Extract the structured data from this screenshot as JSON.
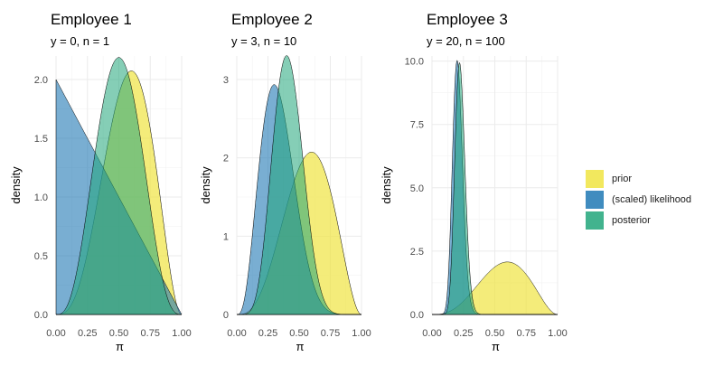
{
  "colors": {
    "prior": "#f0e442",
    "likelihood": "#1f78b4",
    "posterior": "#21a67a",
    "grid": "#ebebeb",
    "outline": "#000000"
  },
  "legend": {
    "items": [
      {
        "key": "prior",
        "label": "prior"
      },
      {
        "key": "likelihood",
        "label": "(scaled) likelihood"
      },
      {
        "key": "posterior",
        "label": "posterior"
      }
    ]
  },
  "chart_data": [
    {
      "type": "area",
      "title": "Employee 1",
      "subtitle": "y = 0, n = 1",
      "xlabel": "π",
      "ylabel": "density",
      "xlim": [
        0,
        1
      ],
      "ylim": [
        0,
        2.2
      ],
      "xticks": [
        0,
        0.25,
        0.5,
        0.75,
        1
      ],
      "xtick_labels": [
        "0.00",
        "0.25",
        "0.50",
        "0.75",
        "1.00"
      ],
      "yticks": [
        0,
        0.5,
        1,
        1.5,
        2
      ],
      "ytick_labels": [
        "0.0",
        "0.5",
        "1.0",
        "1.5",
        "2.0"
      ],
      "series": [
        {
          "name": "prior",
          "distribution": "beta",
          "alpha": 4,
          "beta": 3
        },
        {
          "name": "(scaled) likelihood",
          "distribution": "beta",
          "alpha": 1,
          "beta": 2
        },
        {
          "name": "posterior",
          "distribution": "beta",
          "alpha": 4,
          "beta": 4
        }
      ]
    },
    {
      "type": "area",
      "title": "Employee 2",
      "subtitle": "y = 3, n = 10",
      "xlabel": "π",
      "ylabel": "density",
      "xlim": [
        0,
        1
      ],
      "ylim": [
        0,
        3.3
      ],
      "xticks": [
        0,
        0.25,
        0.5,
        0.75,
        1
      ],
      "xtick_labels": [
        "0.00",
        "0.25",
        "0.50",
        "0.75",
        "1.00"
      ],
      "yticks": [
        0,
        1,
        2,
        3
      ],
      "ytick_labels": [
        "0",
        "1",
        "2",
        "3"
      ],
      "series": [
        {
          "name": "prior",
          "distribution": "beta",
          "alpha": 4,
          "beta": 3
        },
        {
          "name": "(scaled) likelihood",
          "distribution": "beta",
          "alpha": 4,
          "beta": 8
        },
        {
          "name": "posterior",
          "distribution": "beta",
          "alpha": 7,
          "beta": 10
        }
      ]
    },
    {
      "type": "area",
      "title": "Employee 3",
      "subtitle": "y = 20, n = 100",
      "xlabel": "π",
      "ylabel": "density",
      "xlim": [
        0,
        1
      ],
      "ylim": [
        0,
        10.2
      ],
      "xticks": [
        0,
        0.25,
        0.5,
        0.75,
        1
      ],
      "xtick_labels": [
        "0.00",
        "0.25",
        "0.50",
        "0.75",
        "1.00"
      ],
      "yticks": [
        0,
        2.5,
        5,
        7.5,
        10
      ],
      "ytick_labels": [
        "0.0",
        "2.5",
        "5.0",
        "7.5",
        "10.0"
      ],
      "series": [
        {
          "name": "prior",
          "distribution": "beta",
          "alpha": 4,
          "beta": 3
        },
        {
          "name": "(scaled) likelihood",
          "distribution": "beta",
          "alpha": 21,
          "beta": 81
        },
        {
          "name": "posterior",
          "distribution": "beta",
          "alpha": 24,
          "beta": 83
        }
      ]
    }
  ]
}
